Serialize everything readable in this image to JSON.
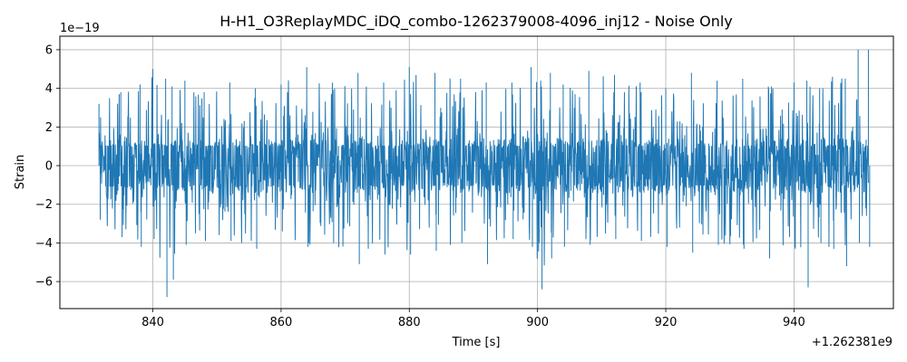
{
  "chart_data": {
    "type": "line",
    "title": "H-H1_O3ReplayMDC_iDQ_combo-1262379008-4096_inj12 - Noise Only",
    "xlabel": "Time [s]",
    "ylabel": "Strain",
    "y_scale_label": "1e−19",
    "x_offset_label": "+1.262381e9",
    "xlim": [
      825.5,
      955.5
    ],
    "ylim": [
      -7.4,
      6.7
    ],
    "x_ticks": [
      840,
      860,
      880,
      900,
      920,
      940
    ],
    "x_tick_labels": [
      "840",
      "860",
      "880",
      "900",
      "920",
      "940"
    ],
    "y_ticks": [
      -6,
      -4,
      -2,
      0,
      2,
      4,
      6
    ],
    "y_tick_labels": [
      "−6",
      "−4",
      "−2",
      "0",
      "2",
      "4",
      "6"
    ],
    "grid": true,
    "series": [
      {
        "color": "#1f77b4",
        "x_start": 831.6,
        "x_end": 951.6,
        "envelope_x": [
          831.6,
          835,
          838,
          840,
          842,
          843,
          845,
          848,
          852,
          856,
          860,
          864,
          868,
          872,
          876,
          880,
          884,
          888,
          892,
          896,
          899,
          900.5,
          902,
          904,
          908,
          912,
          916,
          920,
          924,
          928,
          932,
          936,
          940,
          942,
          944,
          946,
          948,
          950,
          951.6
        ],
        "envelope_max": [
          3.2,
          3.8,
          4.2,
          5.0,
          4.5,
          4.1,
          4.4,
          3.8,
          4.3,
          4.0,
          4.2,
          5.1,
          4.3,
          4.8,
          4.3,
          5.1,
          4.8,
          4.5,
          4.3,
          4.3,
          5.1,
          4.4,
          4.8,
          4.2,
          4.9,
          4.7,
          4.3,
          4.0,
          4.8,
          4.4,
          4.5,
          4.1,
          4.3,
          4.4,
          4.0,
          4.6,
          4.5,
          6.0,
          6.0
        ],
        "envelope_min": [
          -2.8,
          -3.7,
          -4.2,
          -3.8,
          -6.8,
          -5.9,
          -4.1,
          -3.9,
          -3.9,
          -4.3,
          -3.4,
          -4.2,
          -4.0,
          -5.1,
          -4.6,
          -4.6,
          -4.4,
          -4.0,
          -5.1,
          -3.8,
          -4.2,
          -6.4,
          -4.8,
          -4.2,
          -4.1,
          -3.8,
          -3.9,
          -4.2,
          -4.5,
          -4.1,
          -4.3,
          -4.8,
          -4.3,
          -6.3,
          -4.0,
          -4.3,
          -5.2,
          -4.0,
          -4.2
        ]
      }
    ]
  }
}
